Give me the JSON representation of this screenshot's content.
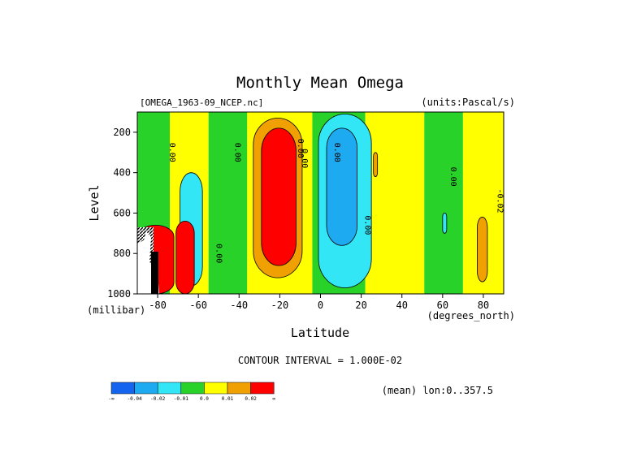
{
  "chart_data": {
    "type": "heatmap",
    "title": "Monthly Mean Omega",
    "file_label": "[OMEGA_1963-09_NCEP.nc]",
    "units_label": "(units:Pascal/s)",
    "xlabel": "Latitude",
    "ylabel": "Level",
    "x_unit": "(degrees_north)",
    "y_unit": "(millibar)",
    "xlim": [
      -90,
      90
    ],
    "ylim": [
      1000,
      100
    ],
    "x_ticks": [
      -80,
      -60,
      -40,
      -20,
      0,
      20,
      40,
      60,
      80
    ],
    "y_ticks": [
      200,
      400,
      600,
      800,
      1000
    ],
    "contour_interval": "CONTOUR INTERVAL = 1.000E-02",
    "mean_note": "(mean) lon:0..357.5",
    "contour_labels": [
      "0.00",
      "0.00",
      "0.00",
      "0.00",
      "0.00",
      "0.00",
      "-0.02",
      "0.00",
      "0.00"
    ],
    "colorbar": {
      "colors": [
        "#1464f0",
        "#1eaaf0",
        "#32e6f5",
        "#28d228",
        "#ffff00",
        "#f0a000",
        "#ff0000"
      ],
      "labels": [
        "-∞",
        "-0.04",
        "-0.02",
        "-0.01",
        "0.0",
        "0.01",
        "0.02",
        "∞"
      ]
    },
    "features": [
      {
        "name": "band-green-sh-polar",
        "lat": [
          -90,
          -74
        ],
        "lev": [
          100,
          1000
        ],
        "color": "#28d228"
      },
      {
        "name": "band-yellow-sh-60",
        "lat": [
          -74,
          -55
        ],
        "lev": [
          100,
          1000
        ],
        "color": "#ffff00"
      },
      {
        "name": "band-green-sh-45",
        "lat": [
          -55,
          -36
        ],
        "lev": [
          100,
          1000
        ],
        "color": "#28d228"
      },
      {
        "name": "band-yellow-sh-30",
        "lat": [
          -36,
          -4
        ],
        "lev": [
          100,
          1000
        ],
        "color": "#ffff00"
      },
      {
        "name": "band-green-eq",
        "lat": [
          -4,
          22
        ],
        "lev": [
          100,
          1000
        ],
        "color": "#28d228"
      },
      {
        "name": "band-yellow-nh-30",
        "lat": [
          22,
          51
        ],
        "lev": [
          100,
          1000
        ],
        "color": "#ffff00"
      },
      {
        "name": "band-green-nh-60",
        "lat": [
          51,
          70
        ],
        "lev": [
          100,
          1000
        ],
        "color": "#28d228"
      },
      {
        "name": "band-yellow-nh-polar",
        "lat": [
          70,
          90
        ],
        "lev": [
          100,
          1000
        ],
        "color": "#ffff00"
      },
      {
        "name": "sh-descent-outer",
        "lat": [
          -33,
          -9
        ],
        "lev": [
          130,
          920
        ],
        "color": "#f0a000"
      },
      {
        "name": "sh-descent-core",
        "lat": [
          -29,
          -12
        ],
        "lev": [
          180,
          860
        ],
        "color": "#ff0000"
      },
      {
        "name": "itcz-ascent-outer",
        "lat": [
          -1,
          25
        ],
        "lev": [
          110,
          970
        ],
        "color": "#32e6f5"
      },
      {
        "name": "itcz-ascent-core",
        "lat": [
          3,
          18
        ],
        "lev": [
          180,
          760
        ],
        "color": "#1eaaf0"
      },
      {
        "name": "sh-60-ascent",
        "lat": [
          -69,
          -58
        ],
        "lev": [
          400,
          960
        ],
        "color": "#32e6f5"
      },
      {
        "name": "antarctic-descent",
        "lat": [
          -90,
          -72
        ],
        "lev": [
          660,
          1000
        ],
        "color": "#ff0000"
      },
      {
        "name": "antarctic-descent-2",
        "lat": [
          -71,
          -62
        ],
        "lev": [
          640,
          1000
        ],
        "color": "#ff0000"
      },
      {
        "name": "nh-orange-strip",
        "lat": [
          77,
          82
        ],
        "lev": [
          620,
          940
        ],
        "color": "#f0a000"
      },
      {
        "name": "nh-orange-small",
        "lat": [
          26,
          28
        ],
        "lev": [
          300,
          420
        ],
        "color": "#f0a000"
      },
      {
        "name": "nh-cyan-small",
        "lat": [
          60,
          62
        ],
        "lev": [
          600,
          700
        ],
        "color": "#32e6f5"
      }
    ]
  }
}
